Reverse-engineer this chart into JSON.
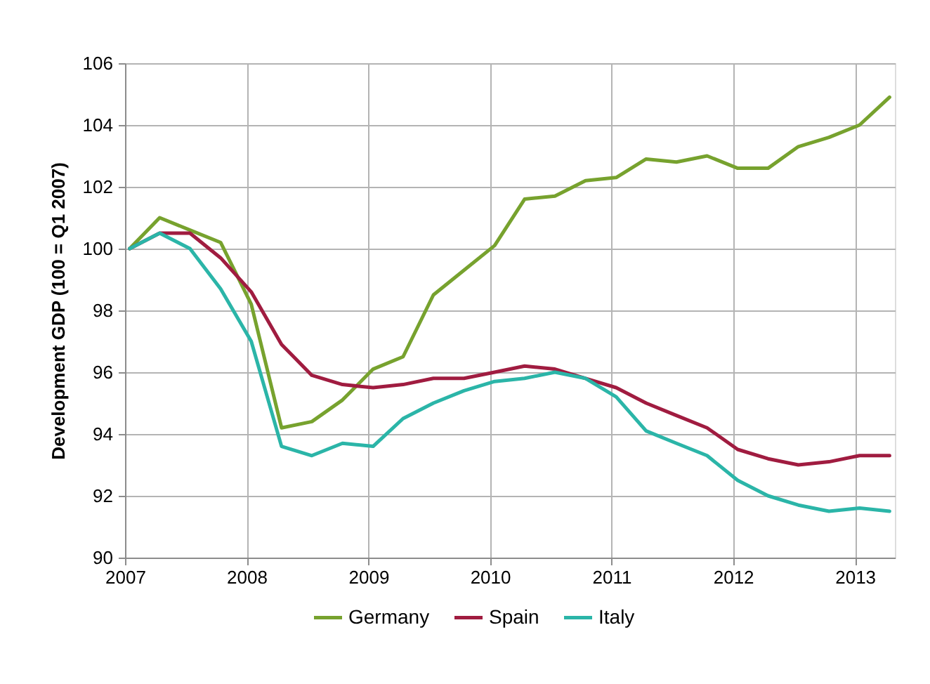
{
  "chart_data": {
    "type": "line",
    "ylabel": "Development GDP (100 = Q1 2007)",
    "x": [
      "2007-01-15",
      "2007-04-15",
      "2007-07-15",
      "2007-10-15",
      "2008-01-15",
      "2008-04-15",
      "2008-07-15",
      "2008-10-15",
      "2009-01-15",
      "2009-04-15",
      "2009-07-15",
      "2009-10-15",
      "2010-01-15",
      "2010-04-15",
      "2010-07-15",
      "2010-10-15",
      "2011-01-15",
      "2011-04-15",
      "2011-07-15",
      "2011-10-15",
      "2012-01-15",
      "2012-04-15",
      "2012-07-15",
      "2012-10-15",
      "2013-01-15",
      "2013-04-15"
    ],
    "series": [
      {
        "name": "Germany",
        "color": "#77a22e",
        "values": [
          100.0,
          101.0,
          100.6,
          100.2,
          98.2,
          94.2,
          94.4,
          95.1,
          96.1,
          96.5,
          98.5,
          99.3,
          100.1,
          101.6,
          101.7,
          102.2,
          102.3,
          102.9,
          102.8,
          103.0,
          102.6,
          102.6,
          103.3,
          103.6,
          104.0,
          104.9
        ]
      },
      {
        "name": "Spain",
        "color": "#a01c40",
        "values": [
          100.0,
          100.5,
          100.5,
          99.7,
          98.6,
          96.9,
          95.9,
          95.6,
          95.5,
          95.6,
          95.8,
          95.8,
          96.0,
          96.2,
          96.1,
          95.8,
          95.5,
          95.0,
          94.6,
          94.2,
          93.5,
          93.2,
          93.0,
          93.1,
          93.3,
          93.3
        ]
      },
      {
        "name": "Italy",
        "color": "#2bb5a8",
        "values": [
          100.0,
          100.5,
          100.0,
          98.7,
          97.0,
          93.6,
          93.3,
          93.7,
          93.6,
          94.5,
          95.0,
          95.4,
          95.7,
          95.8,
          96.0,
          95.8,
          95.2,
          94.1,
          93.7,
          93.3,
          92.5,
          92.0,
          91.7,
          91.5,
          91.6,
          91.5
        ]
      }
    ],
    "xlim": [
      "2007-01-01",
      "2013-05-01"
    ],
    "xticks": [
      "2007",
      "2008",
      "2009",
      "2010",
      "2011",
      "2012",
      "2013"
    ],
    "ylim": [
      90,
      106
    ],
    "yticks": [
      90,
      92,
      94,
      96,
      98,
      100,
      102,
      104,
      106
    ],
    "grid": true,
    "legend": "bottom",
    "line_style": "solid"
  }
}
